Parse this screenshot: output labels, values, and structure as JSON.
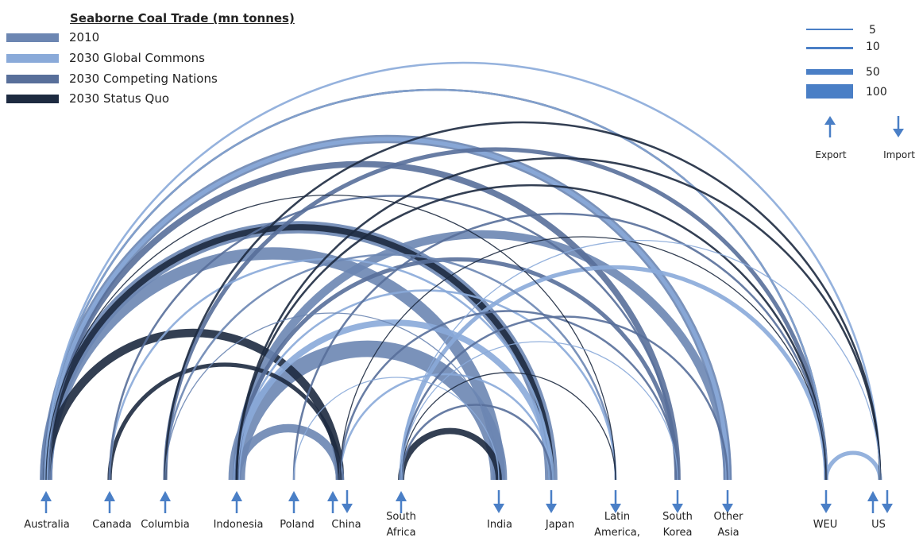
{
  "legend": {
    "title": "Seaborne Coal Trade (mn tonnes)",
    "items": [
      {
        "label": "2010",
        "color": "#6c86b2"
      },
      {
        "label": "2030 Global Commons",
        "color": "#8aaad9"
      },
      {
        "label": "2030 Competing Nations",
        "color": "#586f9a"
      },
      {
        "label": "2030 Status Quo",
        "color": "#1d2a40"
      }
    ]
  },
  "scale": {
    "items": [
      {
        "value": 5
      },
      {
        "value": 10
      },
      {
        "value": 50
      },
      {
        "value": 100
      }
    ],
    "export_label": "Export",
    "import_label": "Import",
    "color": "#4a7fc6"
  },
  "nodes": [
    {
      "id": "australia",
      "label": "Australia",
      "role": "export"
    },
    {
      "id": "canada",
      "label": "Canada",
      "role": "export"
    },
    {
      "id": "columbia",
      "label": "Columbia",
      "role": "export"
    },
    {
      "id": "indonesia",
      "label": "Indonesia",
      "role": "export"
    },
    {
      "id": "poland",
      "label": "Poland",
      "role": "export"
    },
    {
      "id": "china",
      "label": "China",
      "role": "both"
    },
    {
      "id": "south_africa",
      "label": "South Africa",
      "role": "export"
    },
    {
      "id": "india",
      "label": "India",
      "role": "import"
    },
    {
      "id": "japan",
      "label": "Japan",
      "role": "import"
    },
    {
      "id": "latin_america",
      "label": "Latin America,",
      "role": "import"
    },
    {
      "id": "south_korea",
      "label": "South Korea",
      "role": "import"
    },
    {
      "id": "other_asia",
      "label": "Other Asia",
      "role": "import"
    },
    {
      "id": "weu",
      "label": "WEU",
      "role": "import"
    },
    {
      "id": "us",
      "label": "US",
      "role": "both"
    }
  ],
  "flows": [
    {
      "from": "australia",
      "to": "china",
      "scenario": "2030 Status Quo",
      "value": 40
    },
    {
      "from": "australia",
      "to": "india",
      "scenario": "2010",
      "value": 60
    },
    {
      "from": "australia",
      "to": "japan",
      "scenario": "2010",
      "value": 60
    },
    {
      "from": "australia",
      "to": "japan",
      "scenario": "2030 Status Quo",
      "value": 30
    },
    {
      "from": "australia",
      "to": "south_korea",
      "scenario": "2030 Competing Nations",
      "value": 30
    },
    {
      "from": "australia",
      "to": "other_asia",
      "scenario": "2010",
      "value": 40
    },
    {
      "from": "australia",
      "to": "other_asia",
      "scenario": "2030 Global Commons",
      "value": 20
    },
    {
      "from": "australia",
      "to": "latin_america",
      "scenario": "2030 Status Quo",
      "value": 5
    },
    {
      "from": "australia",
      "to": "weu",
      "scenario": "2030 Status Quo",
      "value": 10
    },
    {
      "from": "australia",
      "to": "weu",
      "scenario": "2030 Global Commons",
      "value": 10
    },
    {
      "from": "australia",
      "to": "us",
      "scenario": "2030 Global Commons",
      "value": 10
    },
    {
      "from": "canada",
      "to": "china",
      "scenario": "2030 Status Quo",
      "value": 20
    },
    {
      "from": "canada",
      "to": "japan",
      "scenario": "2030 Global Commons",
      "value": 10
    },
    {
      "from": "canada",
      "to": "south_korea",
      "scenario": "2030 Competing Nations",
      "value": 10
    },
    {
      "from": "columbia",
      "to": "india",
      "scenario": "2010",
      "value": 5
    },
    {
      "from": "columbia",
      "to": "latin_america",
      "scenario": "2010",
      "value": 10
    },
    {
      "from": "columbia",
      "to": "weu",
      "scenario": "2030 Competing Nations",
      "value": 20
    },
    {
      "from": "columbia",
      "to": "us",
      "scenario": "2030 Status Quo",
      "value": 10
    },
    {
      "from": "indonesia",
      "to": "china",
      "scenario": "2010",
      "value": 40
    },
    {
      "from": "indonesia",
      "to": "india",
      "scenario": "2010",
      "value": 80
    },
    {
      "from": "indonesia",
      "to": "japan",
      "scenario": "2030 Global Commons",
      "value": 30
    },
    {
      "from": "indonesia",
      "to": "south_korea",
      "scenario": "2030 Competing Nations",
      "value": 20
    },
    {
      "from": "indonesia",
      "to": "other_asia",
      "scenario": "2010",
      "value": 40
    },
    {
      "from": "indonesia",
      "to": "latin_america",
      "scenario": "2030 Global Commons",
      "value": 10
    },
    {
      "from": "indonesia",
      "to": "weu",
      "scenario": "2030 Status Quo",
      "value": 10
    },
    {
      "from": "indonesia",
      "to": "us",
      "scenario": "2030 Status Quo",
      "value": 10
    },
    {
      "from": "poland",
      "to": "india",
      "scenario": "2030 Global Commons",
      "value": 5
    },
    {
      "from": "poland",
      "to": "weu",
      "scenario": "2030 Competing Nations",
      "value": 10
    },
    {
      "from": "china",
      "to": "japan",
      "scenario": "2030 Global Commons",
      "value": 10
    },
    {
      "from": "china",
      "to": "south_korea",
      "scenario": "2030 Competing Nations",
      "value": 10
    },
    {
      "from": "china",
      "to": "weu",
      "scenario": "2030 Status Quo",
      "value": 5
    },
    {
      "from": "south_africa",
      "to": "india",
      "scenario": "2030 Status Quo",
      "value": 30
    },
    {
      "from": "south_africa",
      "to": "japan",
      "scenario": "2030 Competing Nations",
      "value": 10
    },
    {
      "from": "south_africa",
      "to": "latin_america",
      "scenario": "2030 Status Quo",
      "value": 5
    },
    {
      "from": "south_africa",
      "to": "south_korea",
      "scenario": "2030 Global Commons",
      "value": 5
    },
    {
      "from": "south_africa",
      "to": "other_asia",
      "scenario": "2030 Competing Nations",
      "value": 10
    },
    {
      "from": "south_africa",
      "to": "weu",
      "scenario": "2030 Global Commons",
      "value": 20
    },
    {
      "from": "south_africa",
      "to": "us",
      "scenario": "2030 Global Commons",
      "value": 5
    },
    {
      "from": "us",
      "to": "weu",
      "scenario": "2030 Global Commons",
      "value": 20
    }
  ]
}
